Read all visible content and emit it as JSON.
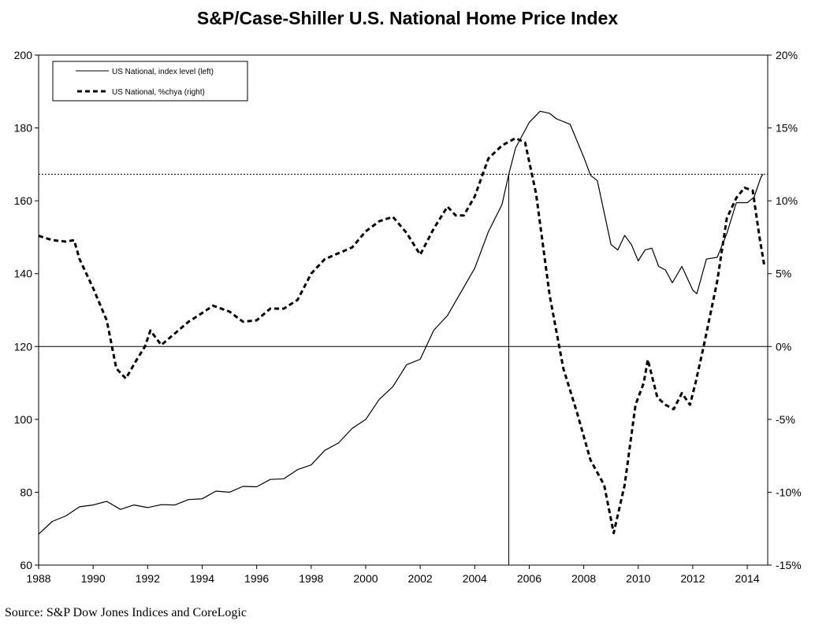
{
  "title": "S&P/Case-Shiller U.S. National Home Price Index",
  "source": "Source: S&P Dow Jones Indices and CoreLogic",
  "chart_data": {
    "type": "line",
    "title": "S&P/Case-Shiller U.S. National Home Price Index",
    "xlim": [
      1988,
      2014.75
    ],
    "x_ticks": [
      1988,
      1990,
      1992,
      1994,
      1996,
      1998,
      2000,
      2002,
      2004,
      2006,
      2008,
      2010,
      2012,
      2014
    ],
    "y_left": {
      "lim": [
        60,
        200
      ],
      "ticks": [
        60,
        80,
        100,
        120,
        140,
        160,
        180,
        200
      ]
    },
    "y_right": {
      "lim": [
        -15,
        20
      ],
      "ticks": [
        -15,
        -10,
        -5,
        0,
        5,
        10,
        15,
        20
      ],
      "tick_labels": [
        "-15%",
        "-10%",
        "-5%",
        "0%",
        "5%",
        "10%",
        "15%",
        "20%"
      ]
    },
    "reference_lines": {
      "horizontal_solid": 120,
      "horizontal_dotted": 167.3,
      "vertical_x": 2005.25
    },
    "legend_position": "top-left",
    "series": [
      {
        "name": "US National, index level (left)",
        "axis": "left",
        "style": "solid",
        "points": [
          [
            1988.0,
            68.5
          ],
          [
            1988.5,
            72.0
          ],
          [
            1989.0,
            73.5
          ],
          [
            1989.5,
            76.0
          ],
          [
            1990.0,
            76.5
          ],
          [
            1990.5,
            77.5
          ],
          [
            1991.0,
            75.3
          ],
          [
            1991.5,
            76.5
          ],
          [
            1992.0,
            75.8
          ],
          [
            1992.5,
            76.6
          ],
          [
            1993.0,
            76.5
          ],
          [
            1993.5,
            78.0
          ],
          [
            1994.0,
            78.2
          ],
          [
            1994.5,
            80.3
          ],
          [
            1995.0,
            80.0
          ],
          [
            1995.5,
            81.6
          ],
          [
            1996.0,
            81.5
          ],
          [
            1996.5,
            83.5
          ],
          [
            1997.0,
            83.7
          ],
          [
            1997.5,
            86.2
          ],
          [
            1998.0,
            87.5
          ],
          [
            1998.5,
            91.5
          ],
          [
            1999.0,
            93.5
          ],
          [
            1999.5,
            97.5
          ],
          [
            2000.0,
            100.0
          ],
          [
            2000.5,
            105.5
          ],
          [
            2001.0,
            109.0
          ],
          [
            2001.5,
            115.0
          ],
          [
            2002.0,
            116.5
          ],
          [
            2002.5,
            124.5
          ],
          [
            2003.0,
            128.5
          ],
          [
            2003.5,
            135.0
          ],
          [
            2004.0,
            141.5
          ],
          [
            2004.5,
            151.5
          ],
          [
            2005.0,
            159.0
          ],
          [
            2005.25,
            167.3
          ],
          [
            2005.5,
            174.5
          ],
          [
            2006.0,
            181.5
          ],
          [
            2006.4,
            184.6
          ],
          [
            2006.75,
            184.0
          ],
          [
            2007.0,
            182.5
          ],
          [
            2007.5,
            181.0
          ],
          [
            2008.0,
            172.0
          ],
          [
            2008.25,
            167.0
          ],
          [
            2008.5,
            165.5
          ],
          [
            2009.0,
            148.0
          ],
          [
            2009.25,
            146.5
          ],
          [
            2009.5,
            150.5
          ],
          [
            2009.75,
            148.0
          ],
          [
            2010.0,
            143.5
          ],
          [
            2010.25,
            146.5
          ],
          [
            2010.5,
            147.0
          ],
          [
            2010.75,
            142.0
          ],
          [
            2011.0,
            141.0
          ],
          [
            2011.25,
            137.5
          ],
          [
            2011.6,
            142.0
          ],
          [
            2012.0,
            135.5
          ],
          [
            2012.15,
            134.5
          ],
          [
            2012.5,
            144.0
          ],
          [
            2012.9,
            144.5
          ],
          [
            2013.25,
            151.0
          ],
          [
            2013.6,
            159.5
          ],
          [
            2014.0,
            159.5
          ],
          [
            2014.25,
            161.0
          ],
          [
            2014.5,
            166.5
          ],
          [
            2014.58,
            167.3
          ]
        ]
      },
      {
        "name": "US National, %chya (right)",
        "axis": "right",
        "style": "dashed",
        "points": [
          [
            1988.0,
            7.6
          ],
          [
            1988.5,
            7.3
          ],
          [
            1989.0,
            7.2
          ],
          [
            1989.3,
            7.3
          ],
          [
            1989.5,
            6.0
          ],
          [
            1990.0,
            4.0
          ],
          [
            1990.5,
            1.8
          ],
          [
            1990.85,
            -1.5
          ],
          [
            1991.2,
            -2.2
          ],
          [
            1991.6,
            -0.9
          ],
          [
            1991.9,
            0.0
          ],
          [
            1992.1,
            1.1
          ],
          [
            1992.5,
            0.1
          ],
          [
            1993.0,
            0.9
          ],
          [
            1993.5,
            1.7
          ],
          [
            1994.0,
            2.3
          ],
          [
            1994.4,
            2.8
          ],
          [
            1995.0,
            2.4
          ],
          [
            1995.5,
            1.7
          ],
          [
            1996.0,
            1.8
          ],
          [
            1996.5,
            2.6
          ],
          [
            1997.0,
            2.6
          ],
          [
            1997.5,
            3.2
          ],
          [
            1998.0,
            5.0
          ],
          [
            1998.5,
            6.0
          ],
          [
            1999.0,
            6.4
          ],
          [
            1999.5,
            6.8
          ],
          [
            2000.0,
            7.9
          ],
          [
            2000.5,
            8.6
          ],
          [
            2001.0,
            8.9
          ],
          [
            2001.5,
            7.8
          ],
          [
            2002.0,
            6.3
          ],
          [
            2002.5,
            8.1
          ],
          [
            2003.0,
            9.6
          ],
          [
            2003.3,
            9.0
          ],
          [
            2003.6,
            9.0
          ],
          [
            2004.0,
            10.3
          ],
          [
            2004.5,
            12.9
          ],
          [
            2005.0,
            13.8
          ],
          [
            2005.5,
            14.3
          ],
          [
            2005.85,
            14.0
          ],
          [
            2006.25,
            10.5
          ],
          [
            2006.75,
            3.5
          ],
          [
            2007.25,
            -1.5
          ],
          [
            2007.75,
            -4.5
          ],
          [
            2008.25,
            -7.8
          ],
          [
            2008.75,
            -9.5
          ],
          [
            2009.1,
            -12.8
          ],
          [
            2009.5,
            -9.5
          ],
          [
            2009.9,
            -4.0
          ],
          [
            2010.2,
            -2.5
          ],
          [
            2010.35,
            -0.9
          ],
          [
            2010.7,
            -3.5
          ],
          [
            2011.0,
            -4.0
          ],
          [
            2011.3,
            -4.3
          ],
          [
            2011.6,
            -3.2
          ],
          [
            2011.9,
            -4.0
          ],
          [
            2012.1,
            -2.5
          ],
          [
            2012.4,
            0.0
          ],
          [
            2012.9,
            4.5
          ],
          [
            2013.25,
            8.8
          ],
          [
            2013.6,
            10.2
          ],
          [
            2013.9,
            10.9
          ],
          [
            2014.2,
            10.7
          ],
          [
            2014.45,
            7.5
          ],
          [
            2014.62,
            5.6
          ]
        ]
      }
    ]
  }
}
